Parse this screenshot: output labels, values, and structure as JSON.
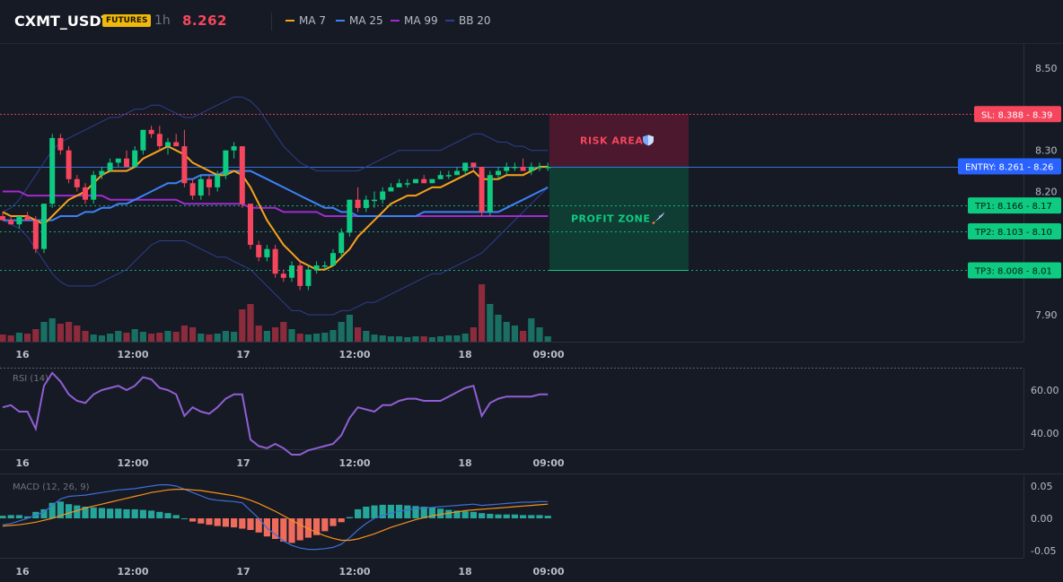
{
  "header": {
    "symbol": "CXMT_USDT",
    "badge": "FUTURES",
    "timeframe": "1h",
    "last_price": "8.262",
    "legend": [
      {
        "label": "MA 7",
        "color": "#f7a21b"
      },
      {
        "label": "MA 25",
        "color": "#3b82f6"
      },
      {
        "label": "MA 99",
        "color": "#a12bd0"
      },
      {
        "label": "BB 20",
        "color": "#2d3f8f"
      }
    ]
  },
  "colors": {
    "up": "#0ecb81",
    "down": "#f6465d",
    "vol_up": "#1a6f63",
    "vol_down": "#8b2b3c",
    "rsi": "#8f5fd3",
    "macd": "#3b6fd6",
    "signal": "#f7931a",
    "hist_up": "#26a69a",
    "hist_down": "#ef6b5c"
  },
  "chart_data": {
    "type": "candlestick",
    "x_ticks": [
      "16",
      "12:00",
      "17",
      "12:00",
      "18",
      "09:00"
    ],
    "y_ticks": [
      "8.50",
      "8.30",
      "8.20",
      "7.90"
    ],
    "candles": [
      [
        8.14,
        8.15,
        8.13,
        8.13
      ],
      [
        8.13,
        8.14,
        8.12,
        8.12
      ],
      [
        8.12,
        8.14,
        8.11,
        8.14
      ],
      [
        8.14,
        8.15,
        8.13,
        8.13
      ],
      [
        8.13,
        8.14,
        8.05,
        8.06
      ],
      [
        8.06,
        8.17,
        8.05,
        8.17
      ],
      [
        8.17,
        8.34,
        8.16,
        8.33
      ],
      [
        8.33,
        8.34,
        8.29,
        8.3
      ],
      [
        8.3,
        8.31,
        8.22,
        8.23
      ],
      [
        8.23,
        8.24,
        8.2,
        8.21
      ],
      [
        8.21,
        8.22,
        8.17,
        8.18
      ],
      [
        8.18,
        8.25,
        8.17,
        8.24
      ],
      [
        8.24,
        8.26,
        8.23,
        8.25
      ],
      [
        8.25,
        8.28,
        8.25,
        8.27
      ],
      [
        8.27,
        8.28,
        8.26,
        8.28
      ],
      [
        8.28,
        8.3,
        8.26,
        8.26
      ],
      [
        8.26,
        8.31,
        8.26,
        8.3
      ],
      [
        8.3,
        8.35,
        8.29,
        8.35
      ],
      [
        8.35,
        8.36,
        8.33,
        8.34
      ],
      [
        8.34,
        8.36,
        8.3,
        8.31
      ],
      [
        8.31,
        8.33,
        8.29,
        8.32
      ],
      [
        8.32,
        8.34,
        8.31,
        8.31
      ],
      [
        8.31,
        8.35,
        8.21,
        8.22
      ],
      [
        8.22,
        8.23,
        8.18,
        8.19
      ],
      [
        8.19,
        8.24,
        8.18,
        8.23
      ],
      [
        8.23,
        8.24,
        8.19,
        8.21
      ],
      [
        8.21,
        8.25,
        8.2,
        8.24
      ],
      [
        8.24,
        8.3,
        8.23,
        8.3
      ],
      [
        8.3,
        8.32,
        8.28,
        8.31
      ],
      [
        8.31,
        8.31,
        8.16,
        8.17
      ],
      [
        8.17,
        8.17,
        8.06,
        8.07
      ],
      [
        8.07,
        8.08,
        8.03,
        8.04
      ],
      [
        8.04,
        8.07,
        8.03,
        8.06
      ],
      [
        8.06,
        8.07,
        7.99,
        8.0
      ],
      [
        8.0,
        8.01,
        7.98,
        7.99
      ],
      [
        7.99,
        8.03,
        7.98,
        8.02
      ],
      [
        8.02,
        8.03,
        7.96,
        7.97
      ],
      [
        7.97,
        8.02,
        7.96,
        8.01
      ],
      [
        8.01,
        8.03,
        8.0,
        8.02
      ],
      [
        8.02,
        8.03,
        8.01,
        8.02
      ],
      [
        8.02,
        8.06,
        8.02,
        8.05
      ],
      [
        8.05,
        8.11,
        8.04,
        8.1
      ],
      [
        8.1,
        8.18,
        8.09,
        8.18
      ],
      [
        8.18,
        8.21,
        8.15,
        8.16
      ],
      [
        8.16,
        8.19,
        8.15,
        8.18
      ],
      [
        8.18,
        8.2,
        8.16,
        8.18
      ],
      [
        8.18,
        8.21,
        8.17,
        8.2
      ],
      [
        8.2,
        8.22,
        8.2,
        8.21
      ],
      [
        8.21,
        8.23,
        8.21,
        8.22
      ],
      [
        8.22,
        8.23,
        8.21,
        8.22
      ],
      [
        8.22,
        8.23,
        8.22,
        8.23
      ],
      [
        8.23,
        8.24,
        8.22,
        8.22
      ],
      [
        8.22,
        8.23,
        8.22,
        8.23
      ],
      [
        8.23,
        8.25,
        8.23,
        8.24
      ],
      [
        8.24,
        8.25,
        8.23,
        8.24
      ],
      [
        8.24,
        8.26,
        8.24,
        8.25
      ],
      [
        8.25,
        8.27,
        8.24,
        8.27
      ],
      [
        8.27,
        8.27,
        8.25,
        8.26
      ],
      [
        8.26,
        8.26,
        8.14,
        8.15
      ],
      [
        8.15,
        8.25,
        8.14,
        8.24
      ],
      [
        8.24,
        8.26,
        8.23,
        8.25
      ],
      [
        8.25,
        8.27,
        8.24,
        8.26
      ],
      [
        8.26,
        8.27,
        8.25,
        8.26
      ],
      [
        8.26,
        8.28,
        8.25,
        8.25
      ],
      [
        8.25,
        8.27,
        8.24,
        8.26
      ],
      [
        8.26,
        8.27,
        8.25,
        8.26
      ],
      [
        8.26,
        8.27,
        8.25,
        8.26
      ]
    ],
    "ma7": [
      8.15,
      8.14,
      8.14,
      8.14,
      8.13,
      8.12,
      8.14,
      8.16,
      8.18,
      8.19,
      8.2,
      8.22,
      8.24,
      8.25,
      8.25,
      8.25,
      8.26,
      8.28,
      8.29,
      8.3,
      8.31,
      8.3,
      8.29,
      8.27,
      8.26,
      8.25,
      8.24,
      8.24,
      8.25,
      8.24,
      8.21,
      8.17,
      8.13,
      8.1,
      8.07,
      8.05,
      8.03,
      8.02,
      8.01,
      8.01,
      8.02,
      8.04,
      8.06,
      8.09,
      8.11,
      8.13,
      8.15,
      8.17,
      8.18,
      8.19,
      8.19,
      8.2,
      8.21,
      8.21,
      8.22,
      8.23,
      8.24,
      8.25,
      8.23,
      8.23,
      8.23,
      8.24,
      8.24,
      8.24,
      8.25,
      8.26,
      8.26
    ],
    "ma25": [
      8.13,
      8.13,
      8.13,
      8.13,
      8.13,
      8.13,
      8.13,
      8.14,
      8.14,
      8.14,
      8.15,
      8.15,
      8.16,
      8.16,
      8.17,
      8.17,
      8.18,
      8.19,
      8.2,
      8.21,
      8.22,
      8.22,
      8.23,
      8.23,
      8.24,
      8.24,
      8.24,
      8.25,
      8.25,
      8.25,
      8.25,
      8.24,
      8.23,
      8.22,
      8.21,
      8.2,
      8.19,
      8.18,
      8.17,
      8.16,
      8.16,
      8.15,
      8.15,
      8.14,
      8.14,
      8.14,
      8.14,
      8.14,
      8.14,
      8.14,
      8.14,
      8.15,
      8.15,
      8.15,
      8.15,
      8.15,
      8.15,
      8.15,
      8.15,
      8.15,
      8.15,
      8.16,
      8.17,
      8.18,
      8.19,
      8.2,
      8.21
    ],
    "ma99": [
      8.2,
      8.2,
      8.2,
      8.19,
      8.19,
      8.19,
      8.19,
      8.19,
      8.19,
      8.19,
      8.19,
      8.19,
      8.19,
      8.18,
      8.18,
      8.18,
      8.18,
      8.18,
      8.18,
      8.18,
      8.18,
      8.18,
      8.17,
      8.17,
      8.17,
      8.17,
      8.17,
      8.17,
      8.17,
      8.17,
      8.16,
      8.16,
      8.16,
      8.16,
      8.15,
      8.15,
      8.15,
      8.15,
      8.15,
      8.14,
      8.14,
      8.14,
      8.14,
      8.14,
      8.14,
      8.14,
      8.14,
      8.14,
      8.14,
      8.14,
      8.14,
      8.14,
      8.14,
      8.14,
      8.14,
      8.14,
      8.14,
      8.14,
      8.14,
      8.14,
      8.14,
      8.14,
      8.14,
      8.14,
      8.14,
      8.14,
      8.14
    ],
    "bb_upper": [
      8.15,
      8.16,
      8.18,
      8.21,
      8.24,
      8.27,
      8.3,
      8.32,
      8.33,
      8.34,
      8.35,
      8.36,
      8.37,
      8.38,
      8.38,
      8.39,
      8.4,
      8.4,
      8.41,
      8.41,
      8.4,
      8.39,
      8.38,
      8.38,
      8.39,
      8.4,
      8.41,
      8.42,
      8.43,
      8.43,
      8.42,
      8.4,
      8.37,
      8.34,
      8.31,
      8.29,
      8.27,
      8.26,
      8.25,
      8.25,
      8.25,
      8.25,
      8.25,
      8.25,
      8.26,
      8.27,
      8.28,
      8.29,
      8.3,
      8.3,
      8.3,
      8.3,
      8.3,
      8.3,
      8.31,
      8.32,
      8.33,
      8.34,
      8.34,
      8.33,
      8.32,
      8.32,
      8.31,
      8.31,
      8.3,
      8.3,
      8.3
    ],
    "bb_lower": [
      8.13,
      8.12,
      8.11,
      8.09,
      8.06,
      8.03,
      8.0,
      7.98,
      7.97,
      7.97,
      7.97,
      7.97,
      7.98,
      7.99,
      8.0,
      8.01,
      8.03,
      8.05,
      8.07,
      8.08,
      8.08,
      8.08,
      8.08,
      8.07,
      8.06,
      8.05,
      8.04,
      8.04,
      8.03,
      8.02,
      8.01,
      7.99,
      7.97,
      7.95,
      7.93,
      7.91,
      7.91,
      7.9,
      7.9,
      7.9,
      7.9,
      7.91,
      7.91,
      7.92,
      7.93,
      7.93,
      7.94,
      7.95,
      7.96,
      7.97,
      7.98,
      7.99,
      8.0,
      8.0,
      8.01,
      8.02,
      8.03,
      8.04,
      8.05,
      8.07,
      8.09,
      8.11,
      8.13,
      8.15,
      8.17,
      8.19,
      8.21
    ],
    "volume": [
      8,
      7,
      10,
      9,
      14,
      22,
      26,
      20,
      22,
      18,
      12,
      8,
      7,
      9,
      12,
      10,
      14,
      11,
      9,
      10,
      12,
      11,
      18,
      16,
      9,
      8,
      9,
      12,
      11,
      36,
      42,
      18,
      12,
      16,
      22,
      14,
      9,
      8,
      9,
      10,
      13,
      22,
      30,
      16,
      12,
      8,
      7,
      6,
      6,
      5,
      6,
      6,
      5,
      6,
      7,
      7,
      9,
      16,
      64,
      42,
      30,
      22,
      18,
      12,
      26,
      16,
      6
    ],
    "rsi": [
      52,
      53,
      50,
      50,
      42,
      62,
      68,
      64,
      58,
      55,
      54,
      58,
      60,
      61,
      62,
      60,
      62,
      66,
      65,
      61,
      60,
      58,
      48,
      52,
      50,
      49,
      52,
      56,
      58,
      58,
      37,
      34,
      33,
      35,
      33,
      30,
      30,
      32,
      33,
      34,
      35,
      39,
      47,
      52,
      51,
      50,
      53,
      53,
      55,
      56,
      56,
      55,
      55,
      55,
      57,
      59,
      61,
      62,
      48,
      54,
      56,
      57,
      57,
      57,
      57,
      58,
      58
    ],
    "macd": [
      -0.01,
      -0.008,
      -0.004,
      0,
      0.005,
      0.01,
      0.02,
      0.03,
      0.034,
      0.035,
      0.036,
      0.038,
      0.04,
      0.042,
      0.044,
      0.045,
      0.046,
      0.048,
      0.05,
      0.052,
      0.052,
      0.05,
      0.045,
      0.04,
      0.035,
      0.03,
      0.028,
      0.027,
      0.026,
      0.024,
      0.012,
      0,
      -0.015,
      -0.025,
      -0.035,
      -0.042,
      -0.046,
      -0.048,
      -0.048,
      -0.047,
      -0.045,
      -0.04,
      -0.03,
      -0.018,
      -0.008,
      0,
      0.005,
      0.008,
      0.011,
      0.013,
      0.015,
      0.016,
      0.017,
      0.018,
      0.019,
      0.02,
      0.021,
      0.022,
      0.02,
      0.021,
      0.022,
      0.023,
      0.024,
      0.025,
      0.025,
      0.026,
      0.026
    ],
    "signal": [
      -0.012,
      -0.011,
      -0.01,
      -0.008,
      -0.006,
      -0.003,
      0,
      0.004,
      0.008,
      0.012,
      0.016,
      0.019,
      0.022,
      0.025,
      0.028,
      0.031,
      0.034,
      0.037,
      0.04,
      0.042,
      0.044,
      0.045,
      0.045,
      0.044,
      0.043,
      0.041,
      0.039,
      0.037,
      0.035,
      0.032,
      0.028,
      0.023,
      0.017,
      0.011,
      0.004,
      -0.003,
      -0.01,
      -0.016,
      -0.022,
      -0.027,
      -0.031,
      -0.034,
      -0.034,
      -0.032,
      -0.028,
      -0.024,
      -0.019,
      -0.014,
      -0.01,
      -0.006,
      -0.002,
      0.001,
      0.004,
      0.006,
      0.008,
      0.01,
      0.012,
      0.013,
      0.014,
      0.015,
      0.016,
      0.017,
      0.018,
      0.019,
      0.02,
      0.021,
      0.022
    ],
    "hist": [
      0.004,
      0.005,
      0.005,
      0.003,
      0.01,
      0.014,
      0.024,
      0.026,
      0.022,
      0.02,
      0.018,
      0.017,
      0.016,
      0.015,
      0.015,
      0.014,
      0.014,
      0.013,
      0.012,
      0.01,
      0.008,
      0.005,
      0,
      -0.005,
      -0.008,
      -0.01,
      -0.012,
      -0.013,
      -0.014,
      -0.016,
      -0.018,
      -0.022,
      -0.028,
      -0.032,
      -0.036,
      -0.038,
      -0.034,
      -0.03,
      -0.026,
      -0.02,
      -0.012,
      -0.006,
      0.002,
      0.014,
      0.018,
      0.02,
      0.021,
      0.021,
      0.021,
      0.02,
      0.019,
      0.018,
      0.017,
      0.015,
      0.013,
      0.012,
      0.011,
      0.01,
      0.008,
      0.007,
      0.006,
      0.006,
      0.006,
      0.005,
      0.005,
      0.005,
      0.004
    ]
  },
  "levels": {
    "sl": {
      "label": "SL: 8.388",
      "axis": "8.39",
      "price": 8.388
    },
    "entry": {
      "label": "ENTRY: 8.261",
      "axis": "8.26",
      "price": 8.261
    },
    "tp1": {
      "label": "TP1: 8.166",
      "axis": "8.17",
      "price": 8.166
    },
    "tp2": {
      "label": "TP2: 8.103",
      "axis": "8.10",
      "price": 8.103
    },
    "tp3": {
      "label": "TP3: 8.008",
      "axis": "8.01",
      "price": 8.008
    }
  },
  "zones": {
    "risk": "RISK AREA",
    "risk_icon": "shield-icon",
    "profit": "PROFIT ZONE",
    "profit_icon": "rocket-icon"
  },
  "rsi_panel": {
    "label": "RSI (14)",
    "ticks": [
      "60.00",
      "40.00"
    ]
  },
  "macd_panel": {
    "label": "MACD (12, 26, 9)",
    "ticks": [
      "0.05",
      "0.00",
      "-0.05"
    ]
  }
}
